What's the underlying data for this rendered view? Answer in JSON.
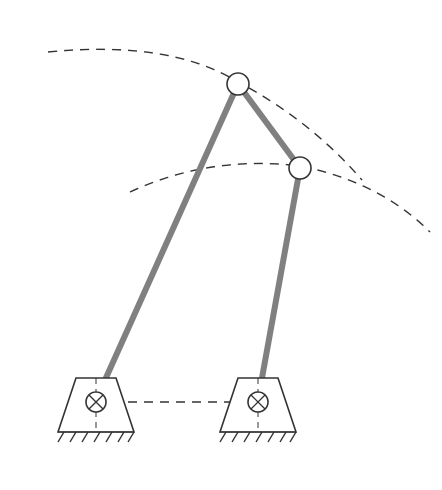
{
  "colors": {
    "background": "#ffffff",
    "link": "#808080",
    "outline": "#333333",
    "dashed": "#333333"
  },
  "diagram": {
    "type": "four-bar-linkage",
    "components": [
      "left-ground-pivot",
      "right-ground-pivot",
      "long-link",
      "short-link",
      "coupler-link",
      "upper-joint",
      "lower-joint",
      "upper-trajectory-arc",
      "lower-trajectory-arc",
      "ground-centerline"
    ]
  }
}
